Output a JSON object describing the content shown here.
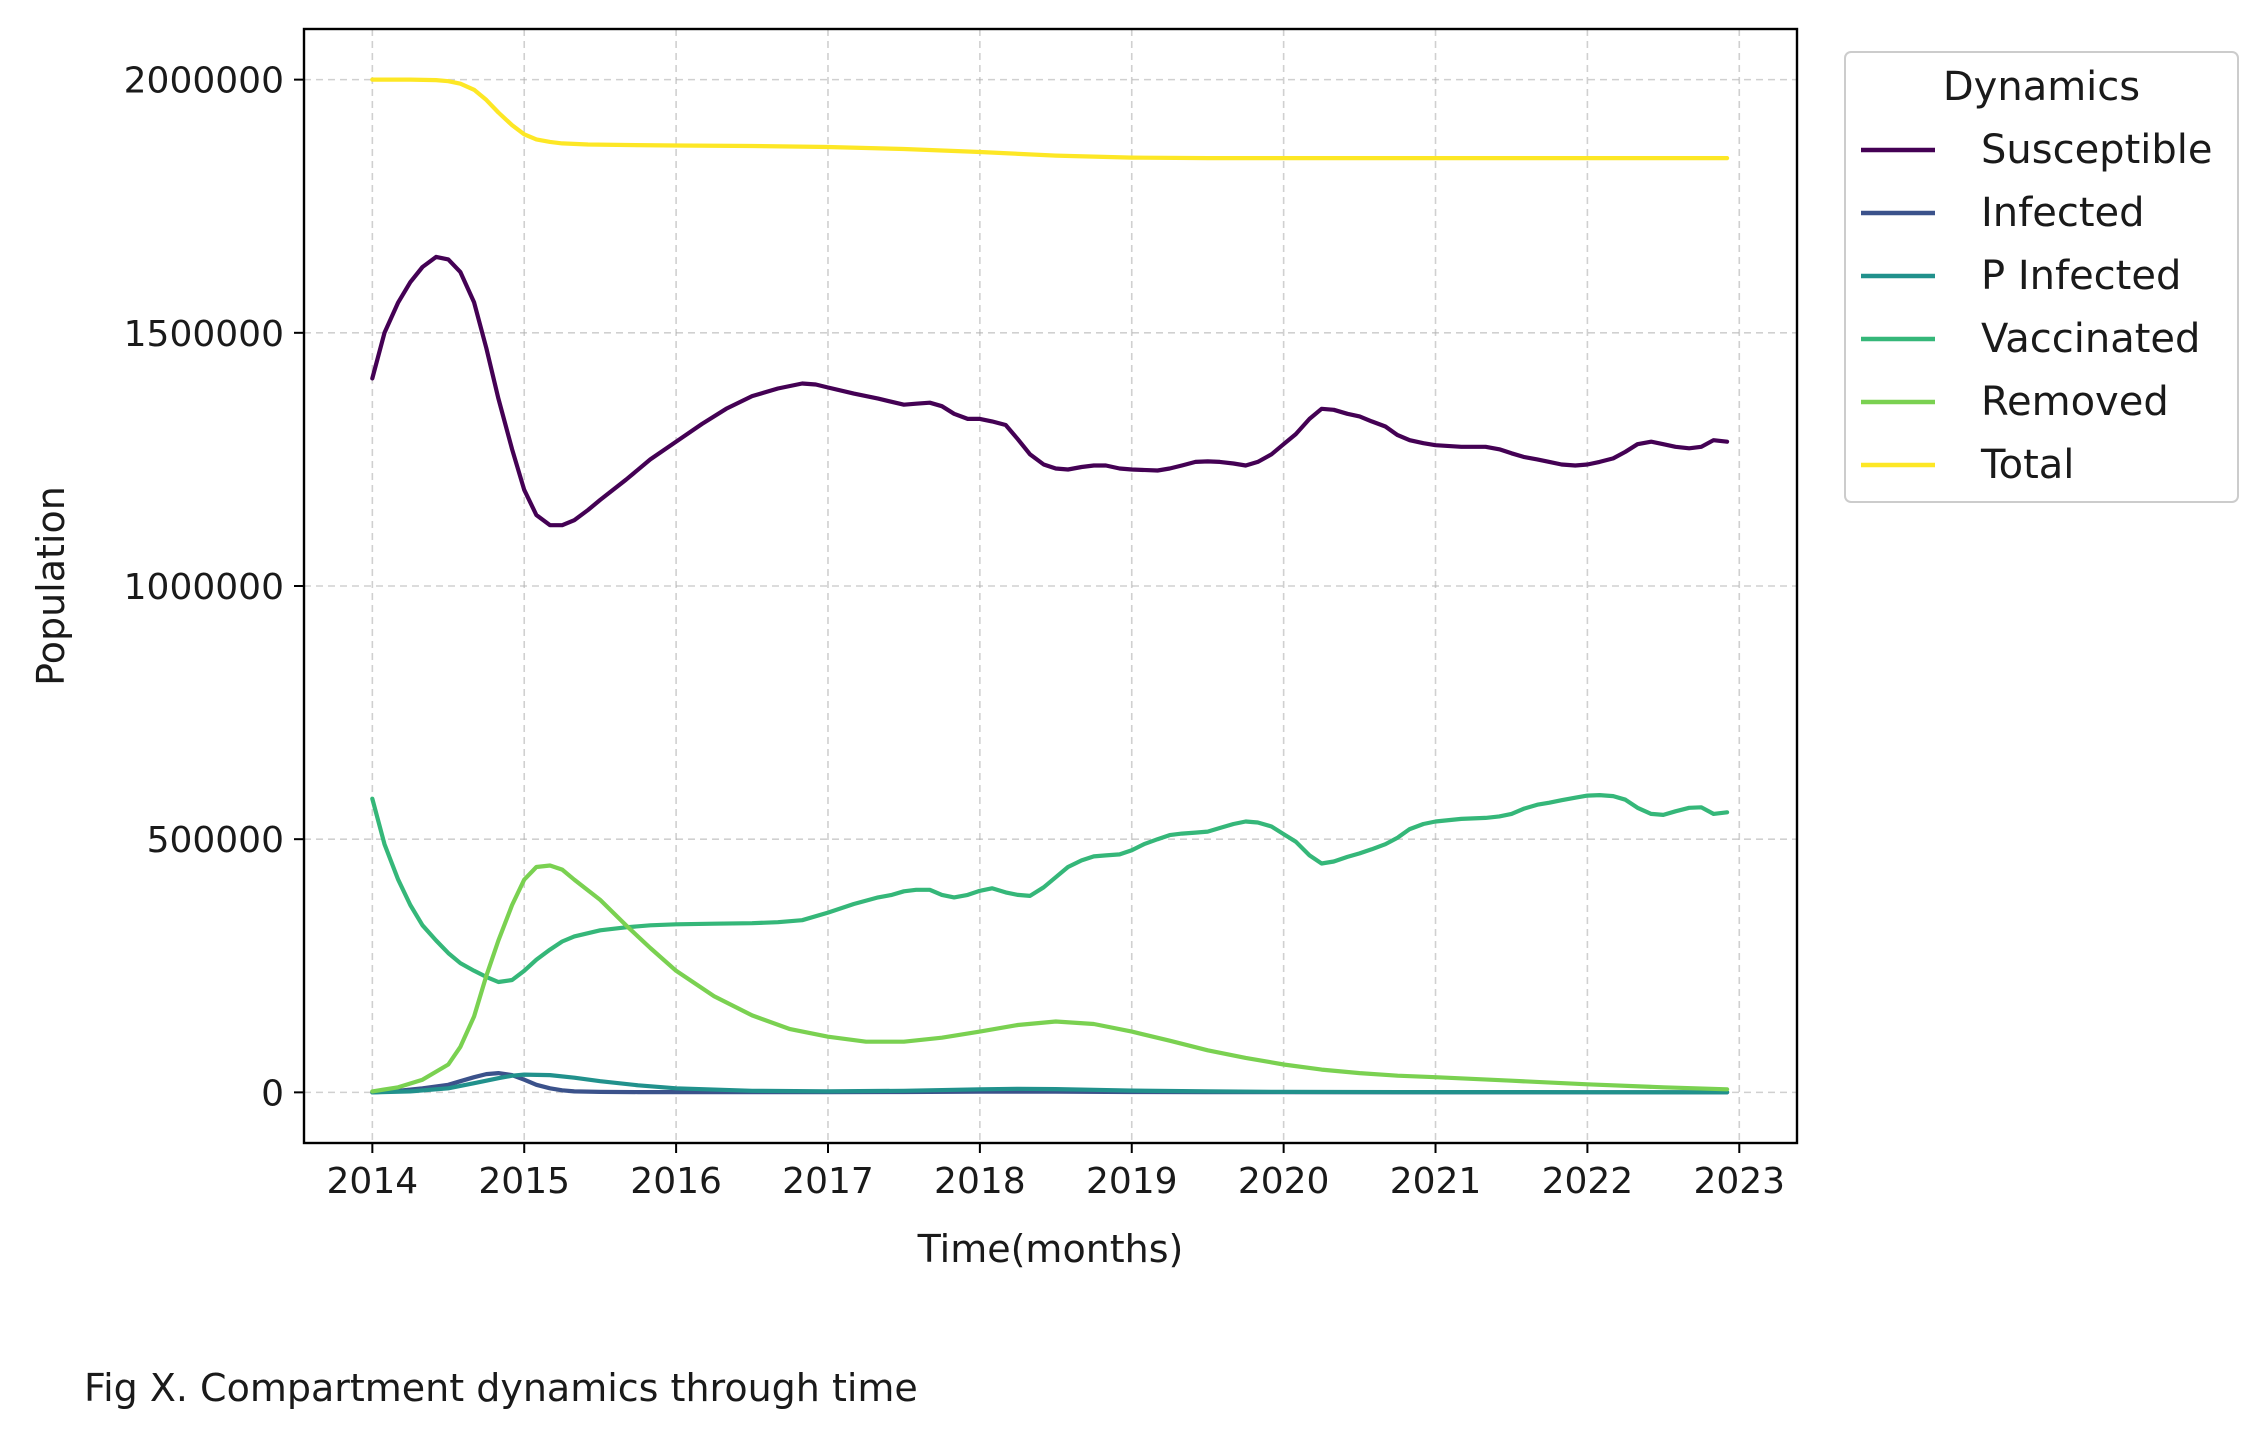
{
  "caption": "Fig X. Compartment dynamics through time",
  "chart_data": {
    "type": "line",
    "title": "",
    "xlabel": "Time(months)",
    "ylabel": "Population",
    "xlim": [
      2013.55,
      2023.38
    ],
    "ylim": [
      -100000,
      2100000
    ],
    "xticks": [
      2014,
      2015,
      2016,
      2017,
      2018,
      2019,
      2020,
      2021,
      2022,
      2023
    ],
    "xtick_labels": [
      "2014",
      "2015",
      "2016",
      "2017",
      "2018",
      "2019",
      "2020",
      "2021",
      "2022",
      "2023"
    ],
    "yticks": [
      0,
      500000,
      1000000,
      1500000,
      2000000
    ],
    "ytick_labels": [
      "0",
      "500000",
      "1000000",
      "1500000",
      "2000000"
    ],
    "grid": true,
    "legend": {
      "title": "Dynamics",
      "placement": "outside-right-top"
    },
    "series": [
      {
        "name": "Susceptible",
        "color": "#440154",
        "x": [
          2014.0,
          2014.08,
          2014.17,
          2014.25,
          2014.33,
          2014.42,
          2014.5,
          2014.58,
          2014.67,
          2014.75,
          2014.83,
          2014.92,
          2015.0,
          2015.08,
          2015.17,
          2015.25,
          2015.33,
          2015.42,
          2015.5,
          2015.67,
          2015.83,
          2016.0,
          2016.17,
          2016.33,
          2016.5,
          2016.67,
          2016.83,
          2016.92,
          2017.0,
          2017.17,
          2017.33,
          2017.5,
          2017.58,
          2017.67,
          2017.75,
          2017.83,
          2017.92,
          2018.0,
          2018.08,
          2018.17,
          2018.25,
          2018.33,
          2018.42,
          2018.5,
          2018.58,
          2018.67,
          2018.75,
          2018.83,
          2018.92,
          2019.0,
          2019.17,
          2019.25,
          2019.33,
          2019.42,
          2019.5,
          2019.58,
          2019.67,
          2019.75,
          2019.83,
          2019.92,
          2020.0,
          2020.08,
          2020.17,
          2020.25,
          2020.33,
          2020.42,
          2020.5,
          2020.58,
          2020.67,
          2020.75,
          2020.83,
          2020.92,
          2021.0,
          2021.17,
          2021.33,
          2021.42,
          2021.5,
          2021.58,
          2021.67,
          2021.75,
          2021.83,
          2021.92,
          2022.0,
          2022.08,
          2022.17,
          2022.25,
          2022.33,
          2022.42,
          2022.5,
          2022.58,
          2022.67,
          2022.75,
          2022.83,
          2022.92
        ],
        "values": [
          1410000,
          1500000,
          1560000,
          1600000,
          1630000,
          1650000,
          1645000,
          1620000,
          1560000,
          1470000,
          1370000,
          1270000,
          1190000,
          1140000,
          1120000,
          1120000,
          1130000,
          1150000,
          1170000,
          1210000,
          1250000,
          1285000,
          1320000,
          1350000,
          1375000,
          1390000,
          1400000,
          1398000,
          1392000,
          1380000,
          1370000,
          1358000,
          1360000,
          1362000,
          1355000,
          1340000,
          1330000,
          1330000,
          1325000,
          1318000,
          1290000,
          1260000,
          1240000,
          1232000,
          1230000,
          1235000,
          1238000,
          1238000,
          1232000,
          1230000,
          1228000,
          1232000,
          1238000,
          1245000,
          1246000,
          1245000,
          1242000,
          1238000,
          1245000,
          1260000,
          1280000,
          1300000,
          1330000,
          1350000,
          1348000,
          1340000,
          1335000,
          1325000,
          1315000,
          1298000,
          1288000,
          1282000,
          1278000,
          1275000,
          1275000,
          1270000,
          1262000,
          1255000,
          1250000,
          1245000,
          1240000,
          1238000,
          1240000,
          1245000,
          1252000,
          1265000,
          1280000,
          1285000,
          1280000,
          1275000,
          1272000,
          1275000,
          1288000,
          1285000
        ]
      },
      {
        "name": "Infected",
        "color": "#3b528b",
        "x": [
          2014.0,
          2014.17,
          2014.33,
          2014.5,
          2014.58,
          2014.67,
          2014.75,
          2014.83,
          2014.92,
          2015.0,
          2015.08,
          2015.17,
          2015.25,
          2015.33,
          2015.5,
          2015.75,
          2016.0,
          2016.5,
          2017.0,
          2017.5,
          2018.0,
          2018.5,
          2019.0,
          2019.5,
          2020.0,
          2021.0,
          2022.0,
          2022.92
        ],
        "values": [
          0,
          3000,
          8000,
          15000,
          22000,
          30000,
          36000,
          38000,
          34000,
          25000,
          15000,
          8000,
          4000,
          2000,
          1000,
          500,
          500,
          500,
          500,
          800,
          1500,
          1500,
          800,
          500,
          300,
          200,
          100,
          100
        ]
      },
      {
        "name": "P Infected",
        "color": "#21918c",
        "x": [
          2014.0,
          2014.25,
          2014.5,
          2014.67,
          2014.83,
          2014.92,
          2015.0,
          2015.17,
          2015.33,
          2015.5,
          2015.75,
          2016.0,
          2016.5,
          2017.0,
          2017.5,
          2018.0,
          2018.25,
          2018.5,
          2018.75,
          2019.0,
          2019.5,
          2020.0,
          2021.0,
          2022.0,
          2022.92
        ],
        "values": [
          0,
          2000,
          8000,
          18000,
          28000,
          33000,
          35000,
          34000,
          29000,
          22000,
          14000,
          8000,
          3000,
          2000,
          3000,
          6000,
          7000,
          6500,
          5000,
          3500,
          2000,
          1000,
          500,
          300,
          200
        ]
      },
      {
        "name": "Vaccinated",
        "color": "#35b779",
        "x": [
          2014.0,
          2014.08,
          2014.17,
          2014.25,
          2014.33,
          2014.42,
          2014.5,
          2014.58,
          2014.67,
          2014.75,
          2014.83,
          2014.92,
          2015.0,
          2015.08,
          2015.17,
          2015.25,
          2015.33,
          2015.5,
          2015.67,
          2015.83,
          2016.0,
          2016.25,
          2016.5,
          2016.67,
          2016.83,
          2017.0,
          2017.17,
          2017.33,
          2017.42,
          2017.5,
          2017.58,
          2017.67,
          2017.75,
          2017.83,
          2017.92,
          2018.0,
          2018.08,
          2018.17,
          2018.25,
          2018.33,
          2018.42,
          2018.5,
          2018.58,
          2018.67,
          2018.75,
          2018.83,
          2018.92,
          2019.0,
          2019.08,
          2019.17,
          2019.25,
          2019.33,
          2019.42,
          2019.5,
          2019.58,
          2019.67,
          2019.75,
          2019.83,
          2019.92,
          2020.0,
          2020.08,
          2020.17,
          2020.25,
          2020.33,
          2020.42,
          2020.5,
          2020.58,
          2020.67,
          2020.75,
          2020.83,
          2020.92,
          2021.0,
          2021.17,
          2021.33,
          2021.42,
          2021.5,
          2021.58,
          2021.67,
          2021.75,
          2021.83,
          2021.92,
          2022.0,
          2022.08,
          2022.17,
          2022.25,
          2022.33,
          2022.42,
          2022.5,
          2022.58,
          2022.67,
          2022.75,
          2022.83,
          2022.92
        ],
        "values": [
          580000,
          490000,
          420000,
          370000,
          330000,
          300000,
          275000,
          255000,
          240000,
          228000,
          218000,
          222000,
          240000,
          262000,
          282000,
          298000,
          308000,
          320000,
          326000,
          330000,
          332000,
          333000,
          334000,
          336000,
          340000,
          355000,
          372000,
          385000,
          390000,
          397000,
          400000,
          400000,
          390000,
          385000,
          390000,
          398000,
          403000,
          395000,
          390000,
          388000,
          405000,
          425000,
          445000,
          458000,
          466000,
          468000,
          470000,
          478000,
          490000,
          500000,
          508000,
          511000,
          513000,
          515000,
          522000,
          530000,
          535000,
          533000,
          525000,
          510000,
          495000,
          468000,
          452000,
          456000,
          465000,
          472000,
          480000,
          490000,
          503000,
          520000,
          530000,
          535000,
          540000,
          542000,
          545000,
          550000,
          560000,
          568000,
          572000,
          577000,
          582000,
          586000,
          587000,
          585000,
          578000,
          562000,
          550000,
          548000,
          555000,
          562000,
          563000,
          550000,
          553000
        ]
      },
      {
        "name": "Removed",
        "color": "#7ad151",
        "x": [
          2014.0,
          2014.17,
          2014.33,
          2014.5,
          2014.58,
          2014.67,
          2014.75,
          2014.83,
          2014.92,
          2015.0,
          2015.08,
          2015.17,
          2015.25,
          2015.33,
          2015.5,
          2015.67,
          2015.83,
          2016.0,
          2016.25,
          2016.5,
          2016.75,
          2017.0,
          2017.25,
          2017.5,
          2017.75,
          2018.0,
          2018.25,
          2018.5,
          2018.75,
          2019.0,
          2019.25,
          2019.5,
          2019.75,
          2020.0,
          2020.25,
          2020.5,
          2020.75,
          2021.0,
          2021.5,
          2022.0,
          2022.5,
          2022.92
        ],
        "values": [
          2000,
          10000,
          25000,
          55000,
          90000,
          150000,
          230000,
          300000,
          370000,
          420000,
          445000,
          448000,
          440000,
          420000,
          380000,
          330000,
          285000,
          240000,
          190000,
          152000,
          125000,
          110000,
          100000,
          100000,
          108000,
          120000,
          133000,
          140000,
          135000,
          120000,
          102000,
          83000,
          68000,
          55000,
          45000,
          38000,
          33000,
          30000,
          23000,
          16000,
          10000,
          6000
        ]
      },
      {
        "name": "Total",
        "color": "#fde725",
        "x": [
          2014.0,
          2014.25,
          2014.42,
          2014.5,
          2014.58,
          2014.67,
          2014.75,
          2014.83,
          2014.92,
          2015.0,
          2015.08,
          2015.17,
          2015.25,
          2015.42,
          2015.67,
          2016.0,
          2016.5,
          2017.0,
          2017.5,
          2018.0,
          2018.5,
          2019.0,
          2019.5,
          2020.0,
          2021.0,
          2022.0,
          2022.92
        ],
        "values": [
          2000000,
          2000000,
          1999000,
          1997000,
          1992000,
          1980000,
          1960000,
          1935000,
          1910000,
          1892000,
          1882000,
          1877000,
          1874000,
          1872000,
          1871000,
          1870000,
          1869000,
          1867000,
          1863000,
          1857000,
          1850000,
          1846000,
          1845000,
          1845000,
          1845000,
          1845000,
          1845000
        ]
      }
    ]
  }
}
